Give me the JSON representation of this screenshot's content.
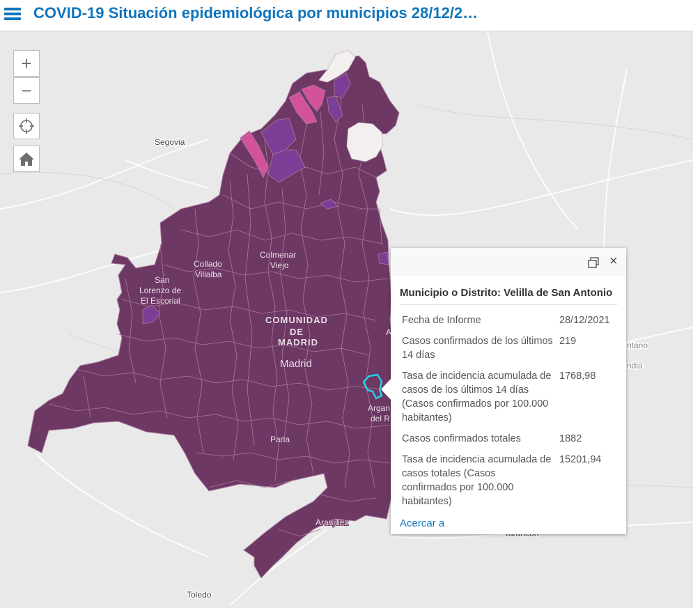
{
  "header": {
    "title": "COVID-19 Situación epidemiológica por municipios 28/12/2…"
  },
  "map": {
    "labels": {
      "segovia": "Segovia",
      "colmenar_1": "Colmenar",
      "colmenar_2": "Viejo",
      "collado_1": "Collado",
      "collado_2": "Villalba",
      "sanlorenzo_1": "San",
      "sanlorenzo_2": "Lorenzo de",
      "sanlorenzo_3": "El Escorial",
      "comunidad_1": "COMUNIDAD",
      "comunidad_2": "DE",
      "comunidad_3": "MADRID",
      "madrid": "Madrid",
      "parla": "Parla",
      "aranjuez": "Aranjuez",
      "toledo": "Toledo",
      "arganda_1": "Argan",
      "arganda_2": "del R",
      "a_partial": "A",
      "tarancon": "Tarancón",
      "mondejar_1": "ntano",
      "mondejar_2": "ndia"
    },
    "colors": {
      "main_fill": "#6e3864",
      "purple": "#7b3e97",
      "pink": "#d2539a",
      "light": "#f4efef",
      "highlight": "#20d4e4"
    }
  },
  "controls": {
    "zoom_in": "+",
    "zoom_out": "−",
    "locate_icon": "crosshair-icon",
    "home_icon": "home-icon"
  },
  "popup": {
    "close_label": "×",
    "title": "Municipio o Distrito: Velilla de San Antonio",
    "rows": [
      {
        "label": "Fecha de Informe",
        "value": "28/12/2021"
      },
      {
        "label": "Casos confirmados de los últimos 14 días",
        "value": "219"
      },
      {
        "label": "Tasa de incidencia acumulada de casos de los últimos 14 días (Casos confirmados por 100.000 habitantes)",
        "value": "1768,98"
      },
      {
        "label": "Casos confirmados totales",
        "value": "1882"
      },
      {
        "label": "Tasa de incidencia acumulada de casos totales (Casos confirmados por 100.000 habitantes)",
        "value": "15201,94"
      }
    ],
    "zoom_link": "Acercar a"
  }
}
